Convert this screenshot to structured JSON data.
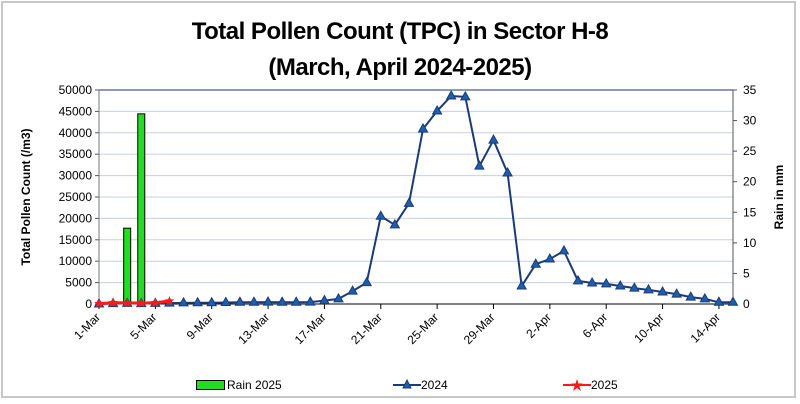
{
  "chart_data": {
    "type": "bar+line",
    "title": "Total Pollen Count (TPC) in Sector H-8",
    "subtitle": "(March, April  2024-2025)",
    "ylabel": "Total Pollen Count (/m3)",
    "y2label": "Rain in mm",
    "ylim": [
      0,
      50000
    ],
    "y2lim": [
      0,
      35
    ],
    "yticks": [
      "0",
      "5000",
      "10000",
      "15000",
      "20000",
      "25000",
      "30000",
      "35000",
      "40000",
      "45000",
      "50000"
    ],
    "y2ticks": [
      "0",
      "5",
      "10",
      "15",
      "20",
      "25",
      "30",
      "35"
    ],
    "grid": true,
    "legend_position": "bottom",
    "xtick_labels": [
      "1-Mar",
      "5-Mar",
      "9-Mar",
      "13-Mar",
      "17-Mar",
      "21-Mar",
      "25-Mar",
      "29-Mar",
      "2-Apr",
      "6-Apr",
      "10-Apr",
      "14-Apr"
    ],
    "categories": [
      "1-Mar",
      "2-Mar",
      "3-Mar",
      "4-Mar",
      "5-Mar",
      "6-Mar",
      "7-Mar",
      "8-Mar",
      "9-Mar",
      "10-Mar",
      "11-Mar",
      "12-Mar",
      "13-Mar",
      "14-Mar",
      "15-Mar",
      "16-Mar",
      "17-Mar",
      "18-Mar",
      "19-Mar",
      "20-Mar",
      "21-Mar",
      "22-Mar",
      "23-Mar",
      "24-Mar",
      "25-Mar",
      "26-Mar",
      "27-Mar",
      "28-Mar",
      "29-Mar",
      "30-Mar",
      "31-Mar",
      "1-Apr",
      "2-Apr",
      "3-Apr",
      "4-Apr",
      "5-Apr",
      "6-Apr",
      "7-Apr",
      "8-Apr",
      "9-Apr",
      "10-Apr",
      "11-Apr",
      "12-Apr",
      "13-Apr",
      "14-Apr",
      "15-Apr"
    ],
    "series": [
      {
        "name": "Rain 2025",
        "type": "bar",
        "axis": "right",
        "color": "#22dd22",
        "values": [
          0,
          0,
          12.4,
          31.1,
          0,
          0,
          null,
          null,
          null,
          null,
          null,
          null,
          null,
          null,
          null,
          null,
          null,
          null,
          null,
          null,
          null,
          null,
          null,
          null,
          null,
          null,
          null,
          null,
          null,
          null,
          null,
          null,
          null,
          null,
          null,
          null,
          null,
          null,
          null,
          null,
          null,
          null,
          null,
          null,
          null,
          null
        ]
      },
      {
        "name": "2024",
        "type": "line",
        "axis": "left",
        "color": "#1a3a7a",
        "marker": "triangle",
        "values": [
          0,
          100,
          150,
          100,
          150,
          200,
          250,
          300,
          300,
          350,
          400,
          400,
          450,
          400,
          400,
          450,
          800,
          1200,
          3000,
          5000,
          20500,
          18500,
          23500,
          40900,
          45100,
          48600,
          48400,
          32200,
          38300,
          30600,
          4200,
          9300,
          10500,
          12400,
          5400,
          4900,
          4700,
          4200,
          3700,
          3300,
          2800,
          2300,
          1600,
          1200,
          400,
          400
        ]
      },
      {
        "name": "2025",
        "type": "line",
        "axis": "left",
        "color": "#ff1a1a",
        "marker": "star",
        "values": [
          100,
          300,
          250,
          200,
          300,
          700,
          null,
          null,
          null,
          null,
          null,
          null,
          null,
          null,
          null,
          null,
          null,
          null,
          null,
          null,
          null,
          null,
          null,
          null,
          null,
          null,
          null,
          null,
          null,
          null,
          null,
          null,
          null,
          null,
          null,
          null,
          null,
          null,
          null,
          null,
          null,
          null,
          null,
          null,
          null,
          null
        ]
      }
    ]
  },
  "legend": {
    "rain_label": "Rain 2025",
    "y2024_label": "2024",
    "y2025_label": "2025"
  }
}
